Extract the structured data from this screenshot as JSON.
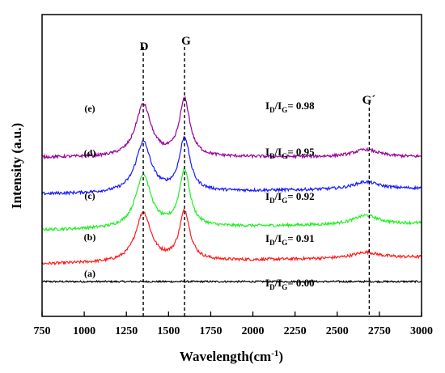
{
  "chart_data": {
    "type": "line",
    "xlabel": "Wavelength(cm",
    "xlabel_sup": "-1",
    "xlabel_close": ")",
    "ylabel": "Intensity (a.u.)",
    "xlim": [
      750,
      3000
    ],
    "y_ticks_shown": false,
    "grid": false,
    "x_ticks": [
      "750",
      "1000",
      "1250",
      "1500",
      "1750",
      "2000",
      "2250",
      "2500",
      "2750",
      "3000"
    ],
    "peak_lines": [
      {
        "label": "D",
        "x": 1350
      },
      {
        "label": "G",
        "x": 1595
      },
      {
        "label": "G´",
        "x": 2690
      }
    ],
    "series": [
      {
        "name": "(a)",
        "color": "#000000",
        "offset": 0.0,
        "D": 0.0,
        "G": 0.0,
        "G2": 0.0,
        "start": 0.0,
        "end": 0.0,
        "ratio_prefix": "I",
        "ratio_sub1": "D",
        "ratio_mid": "/I",
        "ratio_sub2": "G",
        "ratio_value": "= 0.00"
      },
      {
        "name": "(b)",
        "color": "#ff1a1a",
        "offset": 0.55,
        "D": 1.2,
        "G": 1.2,
        "G2": 0.14,
        "start": -0.12,
        "end": 0.05,
        "ratio_prefix": "I",
        "ratio_sub1": "D",
        "ratio_mid": "/I",
        "ratio_sub2": "G",
        "ratio_value": "= 0.91"
      },
      {
        "name": "(c)",
        "color": "#22ee22",
        "offset": 1.42,
        "D": 1.3,
        "G": 1.38,
        "G2": 0.22,
        "start": -0.16,
        "end": 0.0,
        "ratio_prefix": "I",
        "ratio_sub1": "D",
        "ratio_mid": "/I",
        "ratio_sub2": "G",
        "ratio_value": "= 0.92"
      },
      {
        "name": "(d)",
        "color": "#1a1aff",
        "offset": 2.28,
        "D": 1.22,
        "G": 1.3,
        "G2": 0.18,
        "start": -0.14,
        "end": 0.0,
        "ratio_prefix": "I",
        "ratio_sub1": "D",
        "ratio_mid": "/I",
        "ratio_sub2": "G",
        "ratio_value": "= 0.95"
      },
      {
        "name": "(e)",
        "color": "#990099",
        "offset": 3.1,
        "D": 1.28,
        "G": 1.38,
        "G2": 0.18,
        "start": -0.06,
        "end": -0.05,
        "ratio_prefix": "I",
        "ratio_sub1": "D",
        "ratio_mid": "/I",
        "ratio_sub2": "G",
        "ratio_value": "= 0.98"
      }
    ]
  }
}
